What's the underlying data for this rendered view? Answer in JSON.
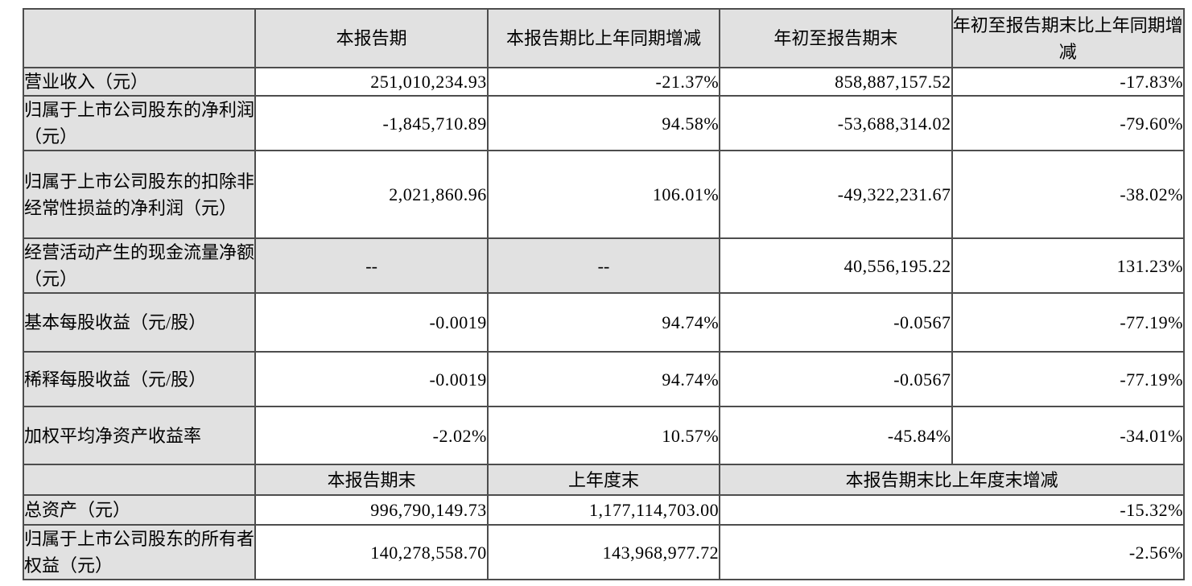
{
  "table": {
    "header1": {
      "corner": "",
      "current_period": "本报告期",
      "current_period_yoy_change": "本报告期比上年同期增减",
      "year_to_date": "年初至报告期末",
      "year_to_date_yoy_change": "年初至报告期末比上年同期增减"
    },
    "rows1": [
      {
        "label": "营业收入（元）",
        "values": [
          "251,010,234.93",
          "-21.37%",
          "858,887,157.52",
          "-17.83%"
        ]
      },
      {
        "label": "归属于上市公司股东的净利润（元）",
        "values": [
          "-1,845,710.89",
          "94.58%",
          "-53,688,314.02",
          "-79.60%"
        ]
      },
      {
        "label": "归属于上市公司股东的扣除非经常性损益的净利润（元）",
        "values": [
          "2,021,860.96",
          "106.01%",
          "-49,322,231.67",
          "-38.02%"
        ]
      },
      {
        "label": "经营活动产生的现金流量净额（元）",
        "values": [
          "--",
          "--",
          "40,556,195.22",
          "131.23%"
        ]
      },
      {
        "label": "基本每股收益（元/股）",
        "values": [
          "-0.0019",
          "94.74%",
          "-0.0567",
          "-77.19%"
        ]
      },
      {
        "label": "稀释每股收益（元/股）",
        "values": [
          "-0.0019",
          "94.74%",
          "-0.0567",
          "-77.19%"
        ]
      },
      {
        "label": "加权平均净资产收益率",
        "values": [
          "-2.02%",
          "10.57%",
          "-45.84%",
          "-34.01%"
        ]
      }
    ],
    "header2": {
      "corner": "",
      "end_of_period": "本报告期末",
      "end_of_prior_year": "上年度末",
      "change_vs_prior_year_end": "本报告期末比上年度末增减"
    },
    "rows2": [
      {
        "label": "总资产（元）",
        "values": [
          "996,790,149.73",
          "1,177,114,703.00",
          "-15.32%"
        ]
      },
      {
        "label": "归属于上市公司股东的所有者权益（元）",
        "values": [
          "140,278,558.70",
          "143,968,977.72",
          "-2.56%"
        ]
      }
    ],
    "colors": {
      "cell_shading": "#e1e1e1",
      "border": "#4d4d4d",
      "text": "#000000"
    }
  }
}
